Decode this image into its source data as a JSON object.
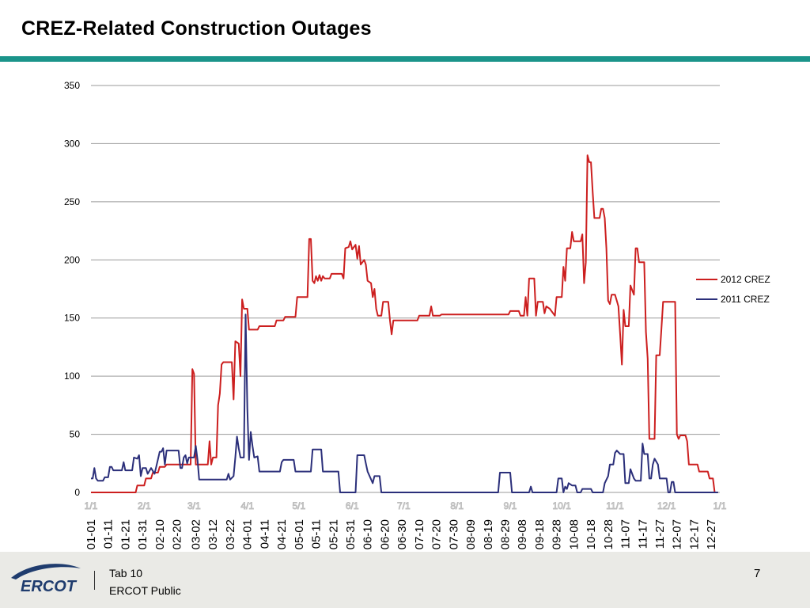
{
  "slide": {
    "title": "CREZ-Related Construction Outages",
    "footer_tab": "Tab 10",
    "footer_public": "ERCOT Public",
    "page_number": "7",
    "logo_text": "ERCOT"
  },
  "colors": {
    "title_rule": "#1b948a",
    "footer_bg": "#eaeae6",
    "logo_blue": "#1f3c6e",
    "series_2012": "#cc1f1f",
    "series_2011": "#2b2f7a",
    "gridline": "#9a9a9a"
  },
  "chart_data": {
    "type": "line",
    "title": "",
    "xlabel": "",
    "ylabel": "",
    "x_range": [
      "01-01",
      "12-31"
    ],
    "ylim": [
      0,
      350
    ],
    "yticks": [
      0,
      50,
      100,
      150,
      200,
      250,
      300,
      350
    ],
    "grid": true,
    "legend_position": "right",
    "month_labels": [
      "1/1",
      "2/1",
      "3/1",
      "4/1",
      "5/1",
      "6/1",
      "7/1",
      "8/1",
      "9/1",
      "10/1",
      "11/1",
      "12/1",
      "1/1"
    ],
    "month_label_days": [
      1,
      32,
      61,
      92,
      122,
      153,
      183,
      214,
      245,
      275,
      306,
      336,
      367
    ],
    "date_tick_labels": [
      "01-01",
      "01-11",
      "01-21",
      "01-31",
      "02-10",
      "02-20",
      "03-02",
      "03-12",
      "03-22",
      "04-01",
      "04-11",
      "04-21",
      "05-01",
      "05-11",
      "05-21",
      "05-31",
      "06-10",
      "06-20",
      "06-30",
      "07-10",
      "07-20",
      "07-30",
      "08-09",
      "08-19",
      "08-29",
      "09-08",
      "09-18",
      "09-28",
      "10-08",
      "10-18",
      "10-28",
      "11-07",
      "11-17",
      "11-27",
      "12-07",
      "12-17",
      "12-27"
    ],
    "series": [
      {
        "name": "2012 CREZ",
        "color": "#cc1f1f",
        "points": [
          [
            "01-01",
            0
          ],
          [
            "01-27",
            0
          ],
          [
            "01-28",
            6
          ],
          [
            "02-01",
            6
          ],
          [
            "02-02",
            12
          ],
          [
            "02-05",
            12
          ],
          [
            "02-06",
            17
          ],
          [
            "02-09",
            17
          ],
          [
            "02-10",
            22
          ],
          [
            "02-13",
            22
          ],
          [
            "02-14",
            24
          ],
          [
            "02-28",
            24
          ],
          [
            "02-29",
            106
          ],
          [
            "03-01",
            102
          ],
          [
            "03-02",
            24
          ],
          [
            "03-09",
            24
          ],
          [
            "03-10",
            44
          ],
          [
            "03-11",
            24
          ],
          [
            "03-12",
            30
          ],
          [
            "03-14",
            30
          ],
          [
            "03-15",
            75
          ],
          [
            "03-16",
            85
          ],
          [
            "03-17",
            110
          ],
          [
            "03-18",
            112
          ],
          [
            "03-23",
            112
          ],
          [
            "03-24",
            80
          ],
          [
            "03-25",
            130
          ],
          [
            "03-27",
            128
          ],
          [
            "03-28",
            100
          ],
          [
            "03-29",
            166
          ],
          [
            "03-30",
            158
          ],
          [
            "04-01",
            158
          ],
          [
            "04-02",
            140
          ],
          [
            "04-07",
            140
          ],
          [
            "04-08",
            143
          ],
          [
            "04-17",
            143
          ],
          [
            "04-18",
            148
          ],
          [
            "04-22",
            148
          ],
          [
            "04-23",
            151
          ],
          [
            "04-29",
            151
          ],
          [
            "04-30",
            168
          ],
          [
            "05-06",
            168
          ],
          [
            "05-07",
            218
          ],
          [
            "05-08",
            218
          ],
          [
            "05-09",
            182
          ],
          [
            "05-10",
            180
          ],
          [
            "05-11",
            186
          ],
          [
            "05-12",
            182
          ],
          [
            "05-13",
            187
          ],
          [
            "05-14",
            182
          ],
          [
            "05-15",
            186
          ],
          [
            "05-16",
            184
          ],
          [
            "05-19",
            184
          ],
          [
            "05-20",
            188
          ],
          [
            "05-26",
            188
          ],
          [
            "05-27",
            184
          ],
          [
            "05-28",
            210
          ],
          [
            "05-30",
            211
          ],
          [
            "05-31",
            216
          ],
          [
            "06-01",
            209
          ],
          [
            "06-03",
            213
          ],
          [
            "06-04",
            201
          ],
          [
            "06-05",
            212
          ],
          [
            "06-06",
            196
          ],
          [
            "06-08",
            200
          ],
          [
            "06-09",
            196
          ],
          [
            "06-10",
            182
          ],
          [
            "06-12",
            180
          ],
          [
            "06-13",
            168
          ],
          [
            "06-14",
            175
          ],
          [
            "06-15",
            158
          ],
          [
            "06-16",
            152
          ],
          [
            "06-18",
            152
          ],
          [
            "06-19",
            164
          ],
          [
            "06-22",
            164
          ],
          [
            "06-23",
            148
          ],
          [
            "06-24",
            136
          ],
          [
            "06-25",
            148
          ],
          [
            "07-09",
            148
          ],
          [
            "07-10",
            152
          ],
          [
            "07-16",
            152
          ],
          [
            "07-17",
            160
          ],
          [
            "07-18",
            152
          ],
          [
            "07-22",
            152
          ],
          [
            "07-23",
            153
          ],
          [
            "08-31",
            153
          ],
          [
            "09-01",
            156
          ],
          [
            "09-06",
            156
          ],
          [
            "09-07",
            152
          ],
          [
            "09-09",
            152
          ],
          [
            "09-10",
            168
          ],
          [
            "09-11",
            152
          ],
          [
            "09-12",
            184
          ],
          [
            "09-15",
            184
          ],
          [
            "09-16",
            152
          ],
          [
            "09-17",
            164
          ],
          [
            "09-20",
            164
          ],
          [
            "09-21",
            154
          ],
          [
            "09-22",
            160
          ],
          [
            "09-24",
            158
          ],
          [
            "09-27",
            152
          ],
          [
            "09-28",
            168
          ],
          [
            "10-01",
            168
          ],
          [
            "10-02",
            194
          ],
          [
            "10-03",
            182
          ],
          [
            "10-04",
            210
          ],
          [
            "10-06",
            210
          ],
          [
            "10-07",
            224
          ],
          [
            "10-08",
            216
          ],
          [
            "10-12",
            216
          ],
          [
            "10-13",
            222
          ],
          [
            "10-14",
            180
          ],
          [
            "10-15",
            198
          ],
          [
            "10-16",
            290
          ],
          [
            "10-17",
            284
          ],
          [
            "10-18",
            284
          ],
          [
            "10-19",
            258
          ],
          [
            "10-20",
            236
          ],
          [
            "10-23",
            236
          ],
          [
            "10-24",
            244
          ],
          [
            "10-25",
            244
          ],
          [
            "10-26",
            236
          ],
          [
            "10-27",
            210
          ],
          [
            "10-28",
            165
          ],
          [
            "10-29",
            162
          ],
          [
            "10-30",
            170
          ],
          [
            "11-01",
            170
          ],
          [
            "11-02",
            165
          ],
          [
            "11-03",
            160
          ],
          [
            "11-04",
            136
          ],
          [
            "11-05",
            110
          ],
          [
            "11-06",
            157
          ],
          [
            "11-07",
            143
          ],
          [
            "11-09",
            143
          ],
          [
            "11-10",
            178
          ],
          [
            "11-12",
            170
          ],
          [
            "11-13",
            210
          ],
          [
            "11-14",
            210
          ],
          [
            "11-15",
            198
          ],
          [
            "11-18",
            198
          ],
          [
            "11-19",
            138
          ],
          [
            "11-20",
            115
          ],
          [
            "11-21",
            46
          ],
          [
            "11-24",
            46
          ],
          [
            "11-25",
            118
          ],
          [
            "11-27",
            118
          ],
          [
            "11-28",
            140
          ],
          [
            "11-29",
            164
          ],
          [
            "12-06",
            164
          ],
          [
            "12-07",
            50
          ],
          [
            "12-08",
            46
          ],
          [
            "12-09",
            49
          ],
          [
            "12-12",
            49
          ],
          [
            "12-13",
            44
          ],
          [
            "12-14",
            24
          ],
          [
            "12-19",
            24
          ],
          [
            "12-20",
            18
          ],
          [
            "12-25",
            18
          ],
          [
            "12-26",
            12
          ],
          [
            "12-28",
            12
          ],
          [
            "12-29",
            0
          ],
          [
            "12-31",
            0
          ]
        ]
      },
      {
        "name": "2011 CREZ",
        "color": "#2b2f7a",
        "points": [
          [
            "01-01",
            12
          ],
          [
            "01-02",
            12
          ],
          [
            "01-03",
            21
          ],
          [
            "01-04",
            12
          ],
          [
            "01-05",
            10
          ],
          [
            "01-08",
            10
          ],
          [
            "01-09",
            13
          ],
          [
            "01-11",
            13
          ],
          [
            "01-12",
            22
          ],
          [
            "01-13",
            22
          ],
          [
            "01-14",
            19
          ],
          [
            "01-19",
            19
          ],
          [
            "01-20",
            26
          ],
          [
            "01-21",
            19
          ],
          [
            "01-25",
            19
          ],
          [
            "01-26",
            30
          ],
          [
            "01-28",
            29
          ],
          [
            "01-29",
            32
          ],
          [
            "01-30",
            14
          ],
          [
            "01-31",
            21
          ],
          [
            "02-02",
            21
          ],
          [
            "02-03",
            16
          ],
          [
            "02-05",
            21
          ],
          [
            "02-07",
            16
          ],
          [
            "02-08",
            22
          ],
          [
            "02-10",
            35
          ],
          [
            "02-11",
            35
          ],
          [
            "02-12",
            38
          ],
          [
            "02-13",
            24
          ],
          [
            "02-14",
            36
          ],
          [
            "02-21",
            36
          ],
          [
            "02-22",
            21
          ],
          [
            "02-23",
            21
          ],
          [
            "02-24",
            30
          ],
          [
            "02-25",
            32
          ],
          [
            "02-26",
            25
          ],
          [
            "02-27",
            30
          ],
          [
            "03-01",
            30
          ],
          [
            "03-02",
            40
          ],
          [
            "03-03",
            28
          ],
          [
            "03-04",
            11
          ],
          [
            "03-20",
            11
          ],
          [
            "03-21",
            16
          ],
          [
            "03-22",
            11
          ],
          [
            "03-24",
            14
          ],
          [
            "03-25",
            30
          ],
          [
            "03-26",
            48
          ],
          [
            "03-27",
            38
          ],
          [
            "03-28",
            30
          ],
          [
            "03-30",
            30
          ],
          [
            "03-31",
            153
          ],
          [
            "04-01",
            72
          ],
          [
            "04-02",
            28
          ],
          [
            "04-03",
            52
          ],
          [
            "04-04",
            40
          ],
          [
            "04-05",
            30
          ],
          [
            "04-07",
            31
          ],
          [
            "04-08",
            18
          ],
          [
            "04-20",
            18
          ],
          [
            "04-21",
            26
          ],
          [
            "04-22",
            28
          ],
          [
            "04-28",
            28
          ],
          [
            "04-29",
            18
          ],
          [
            "05-08",
            18
          ],
          [
            "05-09",
            37
          ],
          [
            "05-14",
            37
          ],
          [
            "05-15",
            18
          ],
          [
            "05-24",
            18
          ],
          [
            "05-25",
            0
          ],
          [
            "06-03",
            0
          ],
          [
            "06-04",
            32
          ],
          [
            "06-08",
            32
          ],
          [
            "06-09",
            25
          ],
          [
            "06-10",
            18
          ],
          [
            "06-13",
            8
          ],
          [
            "06-14",
            14
          ],
          [
            "06-17",
            14
          ],
          [
            "06-18",
            0
          ],
          [
            "08-25",
            0
          ],
          [
            "08-26",
            17
          ],
          [
            "09-01",
            17
          ],
          [
            "09-02",
            0
          ],
          [
            "09-12",
            0
          ],
          [
            "09-13",
            5
          ],
          [
            "09-14",
            0
          ],
          [
            "09-28",
            0
          ],
          [
            "09-29",
            12
          ],
          [
            "10-01",
            12
          ],
          [
            "10-02",
            0
          ],
          [
            "10-03",
            5
          ],
          [
            "10-04",
            3
          ],
          [
            "10-05",
            8
          ],
          [
            "10-07",
            6
          ],
          [
            "10-09",
            6
          ],
          [
            "10-10",
            0
          ],
          [
            "10-12",
            0
          ],
          [
            "10-13",
            3
          ],
          [
            "10-18",
            3
          ],
          [
            "10-19",
            0
          ],
          [
            "10-25",
            0
          ],
          [
            "10-26",
            8
          ],
          [
            "10-28",
            14
          ],
          [
            "10-29",
            24
          ],
          [
            "10-31",
            24
          ],
          [
            "11-01",
            34
          ],
          [
            "11-02",
            36
          ],
          [
            "11-04",
            33
          ],
          [
            "11-06",
            33
          ],
          [
            "11-07",
            8
          ],
          [
            "11-09",
            8
          ],
          [
            "11-10",
            20
          ],
          [
            "11-12",
            12
          ],
          [
            "11-13",
            10
          ],
          [
            "11-16",
            10
          ],
          [
            "11-17",
            42
          ],
          [
            "11-18",
            33
          ],
          [
            "11-20",
            33
          ],
          [
            "11-21",
            12
          ],
          [
            "11-22",
            12
          ],
          [
            "11-23",
            24
          ],
          [
            "11-24",
            29
          ],
          [
            "11-26",
            24
          ],
          [
            "11-27",
            12
          ],
          [
            "12-01",
            12
          ],
          [
            "12-02",
            0
          ],
          [
            "12-03",
            0
          ],
          [
            "12-04",
            9
          ],
          [
            "12-05",
            9
          ],
          [
            "12-06",
            0
          ],
          [
            "12-31",
            0
          ]
        ]
      }
    ]
  }
}
